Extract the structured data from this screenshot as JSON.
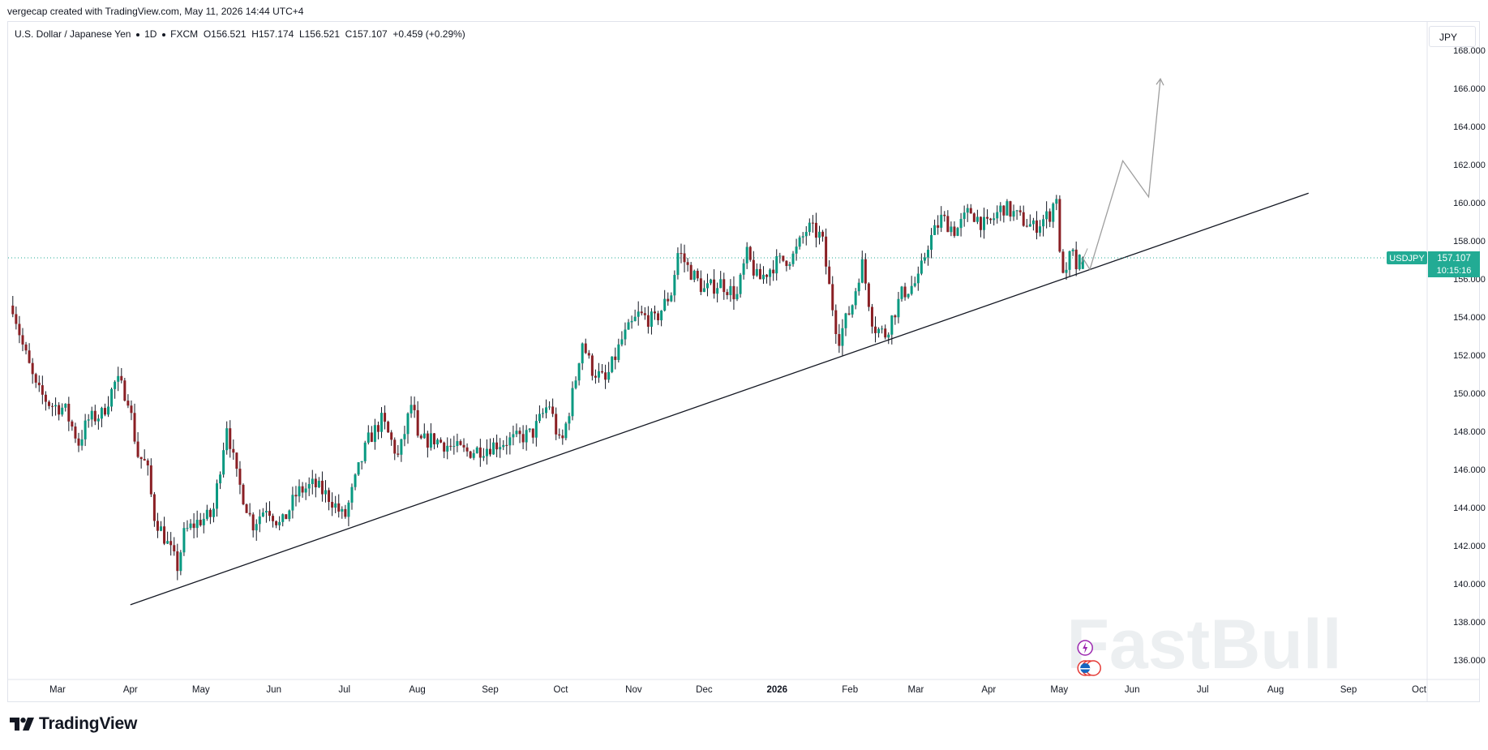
{
  "header": {
    "caption": "vergecap created with TradingView.com, May 11, 2026 14:44 UTC+4"
  },
  "legend": {
    "symbol": "U.S. Dollar / Japanese Yen",
    "interval": "1D",
    "exchange": "FXCM",
    "open": "O156.521",
    "high": "H157.174",
    "low": "L156.521",
    "close": "C157.107",
    "change": "+0.459 (+0.29%)"
  },
  "currency_label": "JPY",
  "price_tag": {
    "symbol": "USDJPY",
    "price": "157.107",
    "countdown": "10:15:16"
  },
  "watermark": "FastBull",
  "footer": {
    "brand": "TradingView"
  },
  "colors": {
    "up": "#089981",
    "down": "#8a1f24",
    "price_line": "#22ab94",
    "trendline": "#131722",
    "projection": "#9e9e9e"
  },
  "chart_data": {
    "type": "candlestick",
    "symbol": "USDJPY",
    "y_axis": {
      "min": 135,
      "max": 168,
      "ticks": [
        136,
        138,
        140,
        142,
        144,
        146,
        148,
        150,
        152,
        154,
        156,
        158,
        160,
        162,
        164,
        166,
        168
      ],
      "tick_labels": [
        "136.000",
        "138.000",
        "140.000",
        "142.000",
        "144.000",
        "146.000",
        "148.000",
        "150.000",
        "152.000",
        "154.000",
        "156.000",
        "158.000",
        "160.000",
        "162.000",
        "164.000",
        "166.000",
        "168.000"
      ]
    },
    "x_axis": {
      "ticks": [
        {
          "date": "2025-03-01",
          "label": "Mar",
          "bold": false
        },
        {
          "date": "2025-04-01",
          "label": "Apr",
          "bold": false
        },
        {
          "date": "2025-05-01",
          "label": "May",
          "bold": false
        },
        {
          "date": "2025-06-01",
          "label": "Jun",
          "bold": false
        },
        {
          "date": "2025-07-01",
          "label": "Jul",
          "bold": false
        },
        {
          "date": "2025-08-01",
          "label": "Aug",
          "bold": false
        },
        {
          "date": "2025-09-01",
          "label": "Sep",
          "bold": false
        },
        {
          "date": "2025-10-01",
          "label": "Oct",
          "bold": false
        },
        {
          "date": "2025-11-01",
          "label": "Nov",
          "bold": false
        },
        {
          "date": "2025-12-01",
          "label": "Dec",
          "bold": false
        },
        {
          "date": "2026-01-01",
          "label": "2026",
          "bold": true
        },
        {
          "date": "2026-02-01",
          "label": "Feb",
          "bold": false
        },
        {
          "date": "2026-03-01",
          "label": "Mar",
          "bold": false
        },
        {
          "date": "2026-04-01",
          "label": "Apr",
          "bold": false
        },
        {
          "date": "2026-05-01",
          "label": "May",
          "bold": false
        },
        {
          "date": "2026-06-01",
          "label": "Jun",
          "bold": false
        },
        {
          "date": "2026-07-01",
          "label": "Jul",
          "bold": false
        },
        {
          "date": "2026-08-01",
          "label": "Aug",
          "bold": false
        },
        {
          "date": "2026-09-01",
          "label": "Sep",
          "bold": false
        },
        {
          "date": "2026-10-01",
          "label": "Oct",
          "bold": false
        }
      ]
    },
    "last_price": 157.107,
    "price_path": [
      [
        "2025-02-10",
        154.6
      ],
      [
        "2025-02-14",
        152.6
      ],
      [
        "2025-02-20",
        150.2
      ],
      [
        "2025-02-26",
        149.4
      ],
      [
        "2025-03-04",
        149.2
      ],
      [
        "2025-03-10",
        147.4
      ],
      [
        "2025-03-14",
        148.6
      ],
      [
        "2025-03-20",
        148.9
      ],
      [
        "2025-03-26",
        150.7
      ],
      [
        "2025-03-31",
        149.8
      ],
      [
        "2025-04-04",
        146.8
      ],
      [
        "2025-04-08",
        146.2
      ],
      [
        "2025-04-11",
        143.6
      ],
      [
        "2025-04-16",
        142.3
      ],
      [
        "2025-04-21",
        140.9
      ],
      [
        "2025-04-24",
        142.7
      ],
      [
        "2025-04-30",
        143.3
      ],
      [
        "2025-05-06",
        143.6
      ],
      [
        "2025-05-12",
        148.4
      ],
      [
        "2025-05-16",
        145.7
      ],
      [
        "2025-05-23",
        143.1
      ],
      [
        "2025-05-29",
        144.1
      ],
      [
        "2025-06-04",
        143.0
      ],
      [
        "2025-06-11",
        144.8
      ],
      [
        "2025-06-18",
        145.2
      ],
      [
        "2025-06-25",
        144.5
      ],
      [
        "2025-07-01",
        143.4
      ],
      [
        "2025-07-07",
        146.0
      ],
      [
        "2025-07-11",
        147.5
      ],
      [
        "2025-07-17",
        148.6
      ],
      [
        "2025-07-24",
        146.6
      ],
      [
        "2025-07-30",
        149.7
      ],
      [
        "2025-08-01",
        147.4
      ],
      [
        "2025-08-08",
        147.6
      ],
      [
        "2025-08-15",
        147.2
      ],
      [
        "2025-08-22",
        146.9
      ],
      [
        "2025-08-29",
        147.1
      ],
      [
        "2025-09-05",
        147.4
      ],
      [
        "2025-09-12",
        147.6
      ],
      [
        "2025-09-19",
        147.9
      ],
      [
        "2025-09-26",
        149.5
      ],
      [
        "2025-10-01",
        147.1
      ],
      [
        "2025-10-07",
        150.5
      ],
      [
        "2025-10-10",
        152.8
      ],
      [
        "2025-10-14",
        151.3
      ],
      [
        "2025-10-20",
        150.6
      ],
      [
        "2025-10-27",
        152.8
      ],
      [
        "2025-11-03",
        154.1
      ],
      [
        "2025-11-10",
        153.8
      ],
      [
        "2025-11-17",
        155.3
      ],
      [
        "2025-11-20",
        157.5
      ],
      [
        "2025-11-24",
        156.6
      ],
      [
        "2025-12-01",
        155.4
      ],
      [
        "2025-12-08",
        155.8
      ],
      [
        "2025-12-15",
        155.1
      ],
      [
        "2025-12-19",
        157.3
      ],
      [
        "2025-12-24",
        155.9
      ],
      [
        "2025-12-31",
        156.8
      ],
      [
        "2026-01-08",
        157.2
      ],
      [
        "2026-01-14",
        158.7
      ],
      [
        "2026-01-20",
        158.2
      ],
      [
        "2026-01-23",
        155.7
      ],
      [
        "2026-01-27",
        152.8
      ],
      [
        "2026-02-02",
        154.7
      ],
      [
        "2026-02-06",
        156.9
      ],
      [
        "2026-02-11",
        153.5
      ],
      [
        "2026-02-16",
        153.1
      ],
      [
        "2026-02-23",
        155.2
      ],
      [
        "2026-03-02",
        155.9
      ],
      [
        "2026-03-06",
        157.8
      ],
      [
        "2026-03-12",
        159.2
      ],
      [
        "2026-03-18",
        158.5
      ],
      [
        "2026-03-24",
        159.6
      ],
      [
        "2026-03-31",
        158.7
      ],
      [
        "2026-04-07",
        159.8
      ],
      [
        "2026-04-14",
        159.2
      ],
      [
        "2026-04-20",
        158.7
      ],
      [
        "2026-04-27",
        159.4
      ],
      [
        "2026-04-30",
        160.5
      ],
      [
        "2026-05-01",
        157.2
      ],
      [
        "2026-05-04",
        156.1
      ],
      [
        "2026-05-06",
        157.6
      ],
      [
        "2026-05-08",
        156.6
      ],
      [
        "2026-05-11",
        157.1
      ]
    ],
    "annotations": {
      "trendline": {
        "start": [
          "2025-04-01",
          138.9
        ],
        "end": [
          "2026-08-15",
          160.5
        ]
      },
      "projection_path": [
        [
          "2026-05-11",
          157.1
        ],
        [
          "2026-05-14",
          156.5
        ],
        [
          "2026-05-28",
          162.2
        ],
        [
          "2026-06-08",
          160.3
        ],
        [
          "2026-06-13",
          166.5
        ]
      ],
      "small_arrow": [
        [
          "2026-05-10",
          156.9
        ],
        [
          "2026-05-13",
          157.6
        ]
      ]
    }
  }
}
